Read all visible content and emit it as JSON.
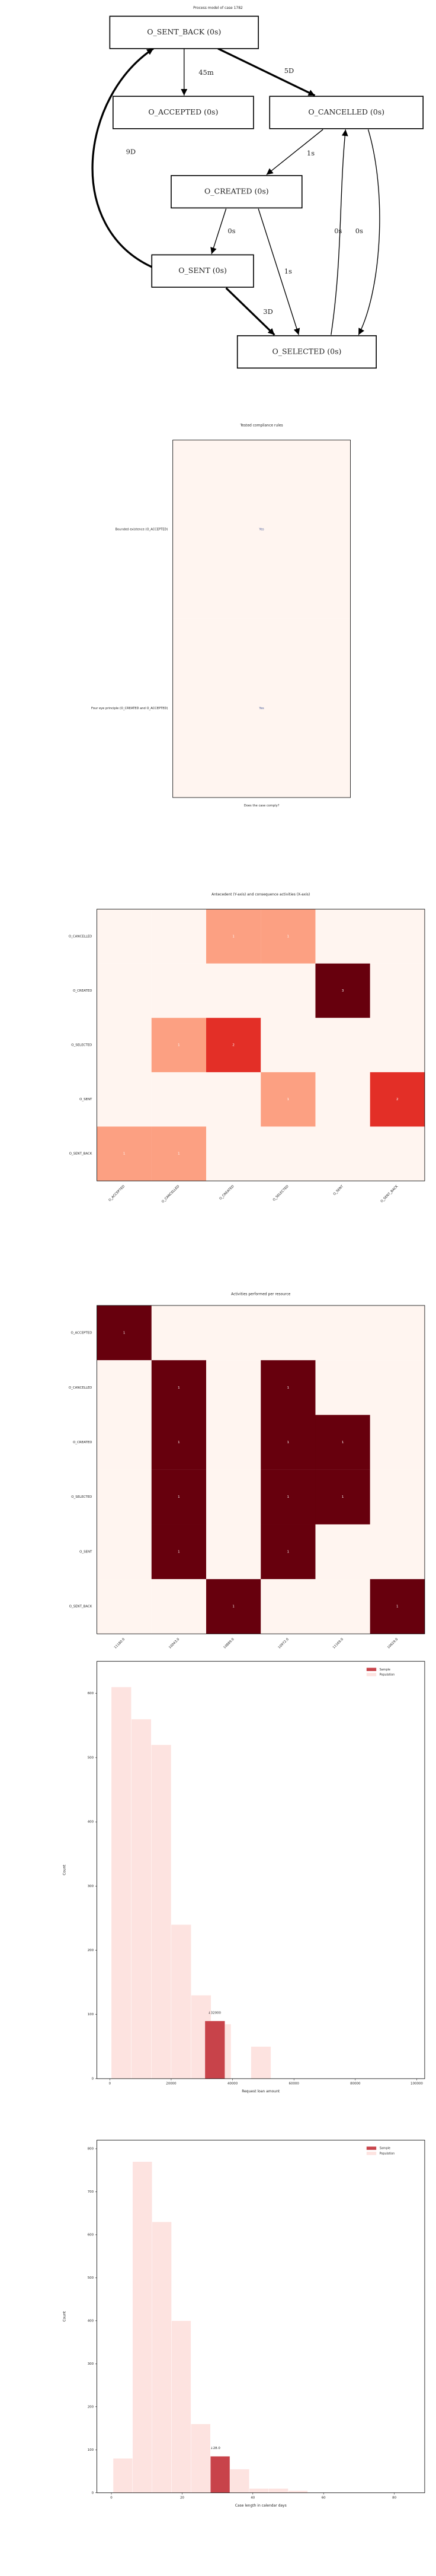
{
  "chart_data": [
    {
      "type": "graph",
      "title": "Process model of case 1782",
      "nodes": [
        {
          "label": "O_SENT_BACK (0s)"
        },
        {
          "label": "O_ACCEPTED (0s)"
        },
        {
          "label": "O_CANCELLED (0s)"
        },
        {
          "label": "O_CREATED (0s)"
        },
        {
          "label": "O_SENT (0s)"
        },
        {
          "label": "O_SELECTED (0s)"
        }
      ],
      "edges": [
        {
          "from": 0,
          "to": 1,
          "label": "45m"
        },
        {
          "from": 0,
          "to": 2,
          "label": "5D"
        },
        {
          "from": 2,
          "to": 3,
          "label": "1s"
        },
        {
          "from": 3,
          "to": 4,
          "label": "0s"
        },
        {
          "from": 4,
          "to": 0,
          "label": "9D"
        },
        {
          "from": 4,
          "to": 5,
          "label": "3D"
        },
        {
          "from": 3,
          "to": 5,
          "label": "1s"
        },
        {
          "from": 5,
          "to": 2,
          "label": "0s"
        },
        {
          "from": 2,
          "to": 5,
          "label": "0s"
        }
      ]
    },
    {
      "type": "text_heatmap",
      "title": "Tested compliance rules",
      "rows": [
        "Bounded existence (O_ACCEPTED)",
        "Four eye principle (O_CREATED and O_ACCEPTED)"
      ],
      "cells": [
        "Yes",
        "Yes"
      ],
      "xlabel": "Does the case comply?",
      "color": "#fff5f0"
    },
    {
      "type": "heatmap",
      "title": "Antecedent (Y-axis) and consequence activities (X-axis)",
      "rows": [
        "O_CANCELLED",
        "O_CREATED",
        "O_SELECTED",
        "O_SENT",
        "O_SENT_BACK"
      ],
      "columns": [
        "O_ACCEPTED",
        "O_CANCELLED",
        "O_CREATED",
        "O_SELECTED",
        "O_SENT",
        "O_SENT_BACK"
      ],
      "values": [
        [
          0,
          0,
          1,
          1,
          0,
          0
        ],
        [
          0,
          0,
          0,
          0,
          3,
          0
        ],
        [
          0,
          1,
          2,
          0,
          0,
          0
        ],
        [
          0,
          0,
          0,
          1,
          0,
          2
        ],
        [
          1,
          1,
          0,
          0,
          0,
          0
        ]
      ],
      "colormap": "Reds"
    },
    {
      "type": "heatmap",
      "title": "Activities performed per resource",
      "rows": [
        "O_ACCEPTED",
        "O_CANCELLED",
        "O_CREATED",
        "O_SELECTED",
        "O_SENT",
        "O_SENT_BACK"
      ],
      "columns": [
        "11180.0",
        "10043.0",
        "10889.0",
        "10972.0",
        "11169.0",
        "10629.0"
      ],
      "values": [
        [
          1,
          0,
          0,
          0,
          0,
          0
        ],
        [
          0,
          1,
          0,
          1,
          0,
          0
        ],
        [
          0,
          1,
          0,
          1,
          1,
          0
        ],
        [
          0,
          1,
          0,
          1,
          1,
          0
        ],
        [
          0,
          1,
          0,
          1,
          0,
          0
        ],
        [
          0,
          0,
          1,
          0,
          0,
          1
        ]
      ],
      "colormap": "Reds"
    },
    {
      "type": "histogram",
      "xlabel": "Request loan amount",
      "ylabel": "Count",
      "series": [
        {
          "name": "Sample",
          "color": "#c8434a",
          "bins": [
            31000,
            37500
          ],
          "counts": [
            90
          ]
        },
        {
          "name": "Population",
          "color": "#fde3e0",
          "bins": [
            500,
            7000,
            13500,
            20000,
            26500,
            33000,
            39500,
            46000,
            52500
          ],
          "counts": [
            610,
            560,
            520,
            240,
            130,
            85,
            0,
            50
          ]
        }
      ],
      "xlim": [
        -4200,
        102600
      ],
      "ylim": [
        0,
        650
      ],
      "xticks": [
        0,
        20000,
        40000,
        60000,
        80000,
        100000
      ],
      "yticks": [
        0,
        100,
        200,
        300,
        400,
        500,
        600
      ],
      "annotation": {
        "x": 32000,
        "label": "↓32000"
      },
      "legend": "upper right"
    },
    {
      "type": "histogram",
      "xlabel": "Case length in calendar days",
      "ylabel": "Count",
      "series": [
        {
          "name": "Sample",
          "color": "#c8434a",
          "bins": [
            28,
            33.5
          ],
          "counts": [
            85
          ]
        },
        {
          "name": "Population",
          "color": "#fde3e0",
          "bins": [
            0.5,
            6,
            11.5,
            17,
            22.5,
            28,
            33.5,
            39,
            44.5,
            50,
            55.5
          ],
          "counts": [
            80,
            770,
            630,
            400,
            160,
            80,
            55,
            10,
            10,
            5
          ]
        }
      ],
      "xlim": [
        -4.1,
        88.6
      ],
      "ylim": [
        0,
        820
      ],
      "xticks": [
        0,
        20,
        40,
        60,
        80
      ],
      "yticks": [
        0,
        100,
        200,
        300,
        400,
        500,
        600,
        700,
        800
      ],
      "annotation": {
        "x": 28,
        "label": "↓28.0"
      },
      "legend": "upper right"
    }
  ]
}
